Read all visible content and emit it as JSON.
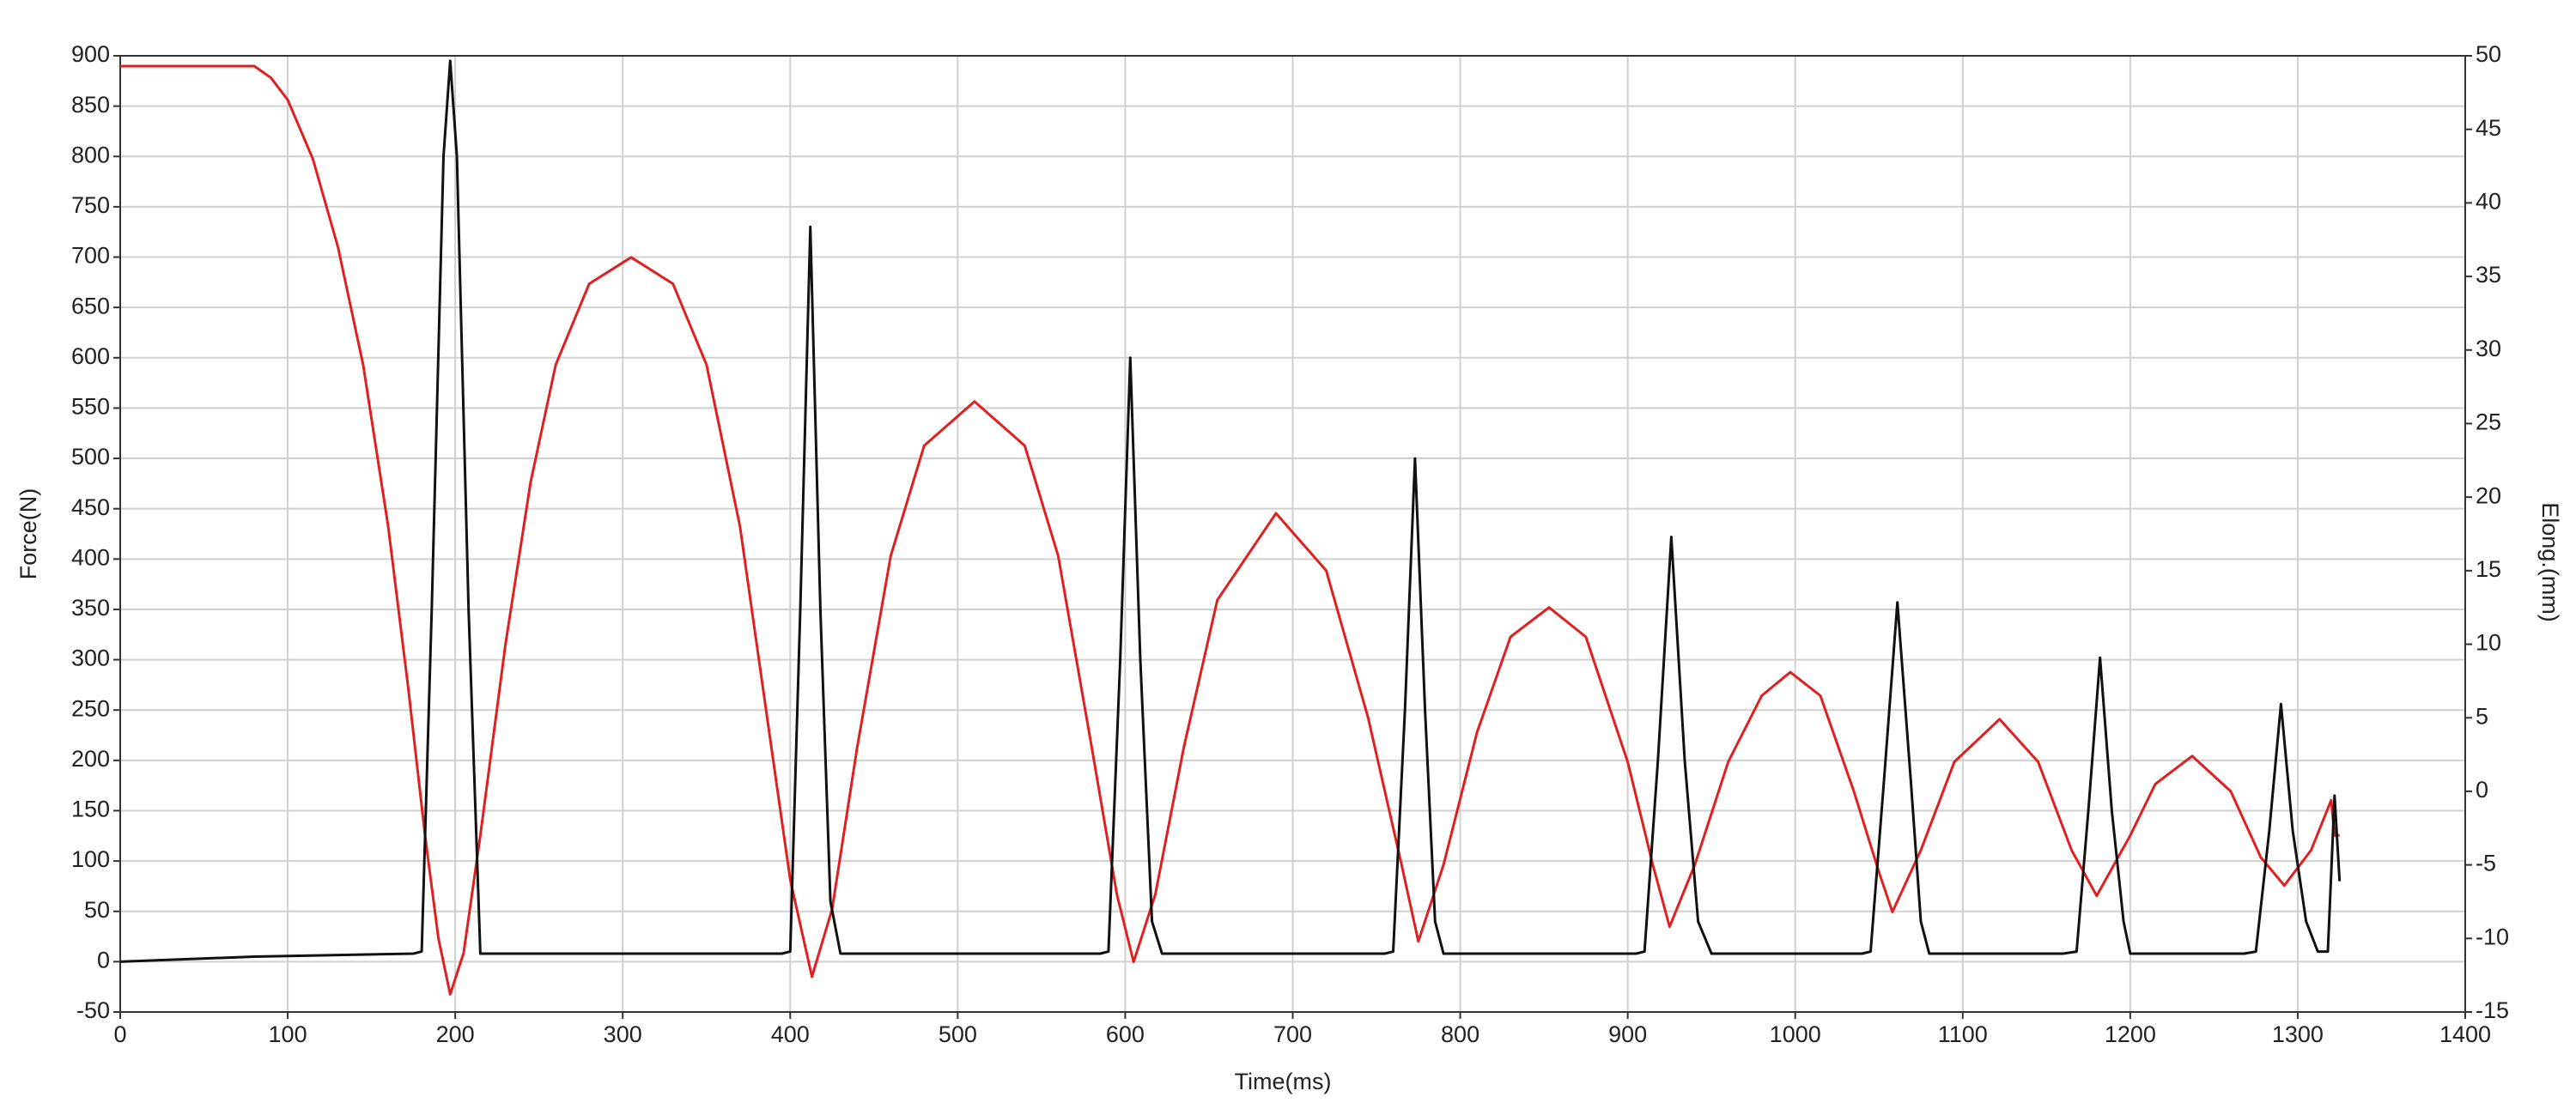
{
  "chart_data": {
    "type": "line",
    "xlabel": "Time(ms)",
    "ylabel": "Force(N)",
    "y2label": "Elong.(mm)",
    "xlim": [
      0,
      1400
    ],
    "xticks": [
      0,
      100,
      200,
      300,
      400,
      500,
      600,
      700,
      800,
      900,
      1000,
      1100,
      1200,
      1300,
      1400
    ],
    "ylim": [
      -50,
      900
    ],
    "yticks": [
      -50,
      0,
      50,
      100,
      150,
      200,
      250,
      300,
      350,
      400,
      450,
      500,
      550,
      600,
      650,
      700,
      750,
      800,
      850,
      900
    ],
    "y2lim": [
      -15,
      50
    ],
    "y2ticks": [
      -15,
      -10,
      -5,
      0,
      5,
      10,
      15,
      20,
      25,
      30,
      35,
      40,
      45,
      50
    ],
    "grid": true,
    "series": [
      {
        "color": "#e02020",
        "axis": "y2",
        "x": [
          0,
          80,
          90,
          100,
          115,
          130,
          145,
          160,
          172,
          182,
          190,
          197,
          205,
          215,
          230,
          245,
          260,
          280,
          305,
          330,
          350,
          370,
          385,
          400,
          413,
          425,
          440,
          460,
          480,
          510,
          540,
          560,
          580,
          595,
          605,
          618,
          635,
          655,
          690,
          720,
          745,
          765,
          775,
          790,
          810,
          830,
          853,
          875,
          900,
          915,
          925,
          940,
          960,
          980,
          997,
          1015,
          1035,
          1050,
          1058,
          1075,
          1095,
          1122,
          1145,
          1165,
          1180,
          1200,
          1215,
          1237,
          1260,
          1278,
          1292,
          1308,
          1320,
          1322,
          1325
        ],
        "values": [
          49.3,
          49.3,
          48.5,
          47,
          43,
          37,
          29,
          18,
          7,
          -3,
          -10,
          -13.8,
          -11,
          -3,
          10,
          21,
          29,
          34.5,
          36.3,
          34.5,
          29,
          18,
          6,
          -6,
          -12.6,
          -8,
          3,
          16,
          23.5,
          26.5,
          23.5,
          16,
          3,
          -7,
          -11.6,
          -7,
          3,
          13,
          18.9,
          15,
          5,
          -5,
          -10.2,
          -5,
          4,
          10.5,
          12.5,
          10.5,
          2,
          -5,
          -9.2,
          -5,
          2,
          6.5,
          8.1,
          6.5,
          0,
          -5.5,
          -8.2,
          -4,
          2,
          4.9,
          2,
          -4,
          -7.1,
          -3,
          0.5,
          2.4,
          0,
          -4.5,
          -6.4,
          -4,
          -0.6,
          -3,
          -3
        ]
      },
      {
        "color": "#111111",
        "x": [
          0,
          80,
          175,
          180,
          186,
          193,
          197,
          201,
          208,
          215,
          395,
          400,
          406,
          412,
          418,
          424,
          430,
          585,
          590,
          597,
          603,
          609,
          616,
          622,
          755,
          760,
          767,
          773,
          779,
          785,
          790,
          905,
          910,
          918,
          926,
          934,
          942,
          950,
          1040,
          1045,
          1053,
          1061,
          1069,
          1075,
          1080,
          1160,
          1168,
          1175,
          1182,
          1189,
          1196,
          1200,
          1268,
          1275,
          1283,
          1290,
          1297,
          1305,
          1312,
          1318,
          1322,
          1325
        ],
        "values": [
          0,
          5,
          8,
          10,
          350,
          800,
          895,
          800,
          350,
          8,
          8,
          10,
          350,
          730,
          350,
          60,
          8,
          8,
          10,
          300,
          600,
          300,
          40,
          8,
          8,
          10,
          250,
          500,
          250,
          40,
          8,
          8,
          10,
          200,
          422,
          200,
          40,
          8,
          8,
          10,
          180,
          357,
          180,
          40,
          8,
          8,
          10,
          150,
          302,
          150,
          40,
          8,
          8,
          10,
          130,
          256,
          130,
          40,
          10,
          10,
          165,
          80
        ]
      }
    ]
  }
}
